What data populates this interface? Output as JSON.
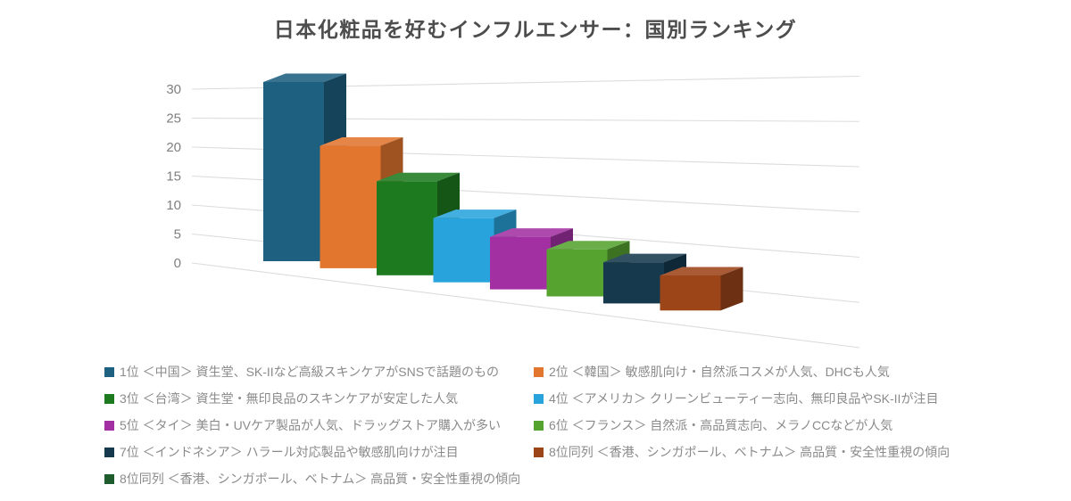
{
  "page": {
    "background": "#ffffff"
  },
  "chart_data": {
    "type": "bar",
    "style": "3d-perspective",
    "title": "日本化粧品を好むインフルエンサー：国別ランキング",
    "xlabel": "",
    "ylabel": "",
    "ylim": [
      0,
      30
    ],
    "y_ticks": [
      "0",
      "5",
      "10",
      "15",
      "20",
      "25",
      "30"
    ],
    "grid": true,
    "legend_position": "bottom-two-columns",
    "gridline_color": "#dcdcdc",
    "tick_color": "#7f7f7f",
    "title_color": "#4d4d4d",
    "legend_text_color": "#8a8a8a",
    "series": [
      {
        "label": "1位 ＜中国＞ 資生堂、SK-IIなど高級スキンケアがSNSで話題のもの",
        "value": 30,
        "color": "#1E6080",
        "bar": true
      },
      {
        "label": "2位 ＜韓国＞ 敏感肌向け・自然派コスメが人気、DHCも人気",
        "value": 20,
        "color": "#E2762F",
        "bar": true
      },
      {
        "label": "3位 ＜台湾＞ 資生堂・無印良品のスキンケアが安定した人気",
        "value": 15,
        "color": "#1E7A1F",
        "bar": true
      },
      {
        "label": "4位 ＜アメリカ＞ クリーンビューティー志向、無印良品やSK-IIが注目",
        "value": 10,
        "color": "#29A3DC",
        "bar": true
      },
      {
        "label": "5位 ＜タイ＞ 美白・UVケア製品が人気、ドラッグストア購入が多い",
        "value": 8,
        "color": "#A330A3",
        "bar": true
      },
      {
        "label": "6位 ＜フランス＞ 自然派・高品質志向、メラノCCなどが人気",
        "value": 7,
        "color": "#56A330",
        "bar": true
      },
      {
        "label": "7位 ＜インドネシア＞ ハラール対応製品や敏感肌向けが注目",
        "value": 6,
        "color": "#16394E",
        "bar": true
      },
      {
        "label": "8位同列 ＜香港、シンガポール、ベトナム＞ 高品質・安全性重視の傾向",
        "value": 5,
        "color": "#9C4519",
        "bar": true
      },
      {
        "label": "8位同列 ＜香港、シンガポール、ベトナム＞ 高品質・安全性重視の傾向",
        "color": "#1F5C2D",
        "bar": false
      }
    ]
  }
}
